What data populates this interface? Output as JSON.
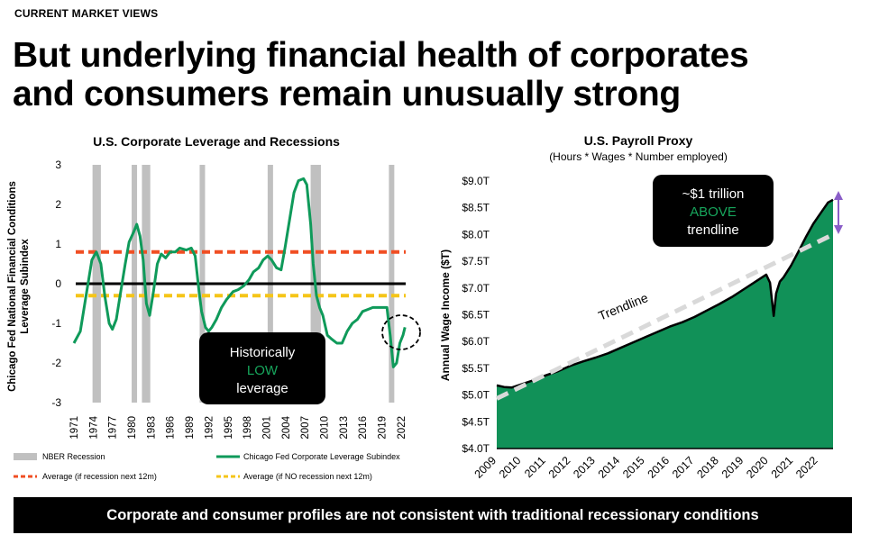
{
  "eyebrow": "CURRENT MARKET VIEWS",
  "headline": {
    "line1": "But underlying financial health of corporates",
    "line2": "and consumers remain unusually strong"
  },
  "footer": "Corporate and consumer profiles are not consistent with traditional recessionary conditions",
  "colors": {
    "green": "#0f9a5a",
    "area_green": "#119158",
    "red_dash": "#f04e23",
    "yellow_dash": "#f5c518",
    "recession_gray": "#c0c0c0",
    "trend_dash": "#d9d9d9",
    "arrow_purple": "#8a5ec8",
    "callout_bg": "#000000",
    "low_green": "#17a55c"
  },
  "chart_data": [
    {
      "type": "line",
      "title": "U.S. Corporate Leverage and Recessions",
      "ylabel_line1": "Chicago Fed National Financial Conditions",
      "ylabel_line2": "Leverage Subindex",
      "ylim": [
        -3,
        3
      ],
      "xlim": [
        1971,
        2023
      ],
      "yticks": [
        "3",
        "2",
        "1",
        "0",
        "-1",
        "-2",
        "-3"
      ],
      "xticks": [
        "1971",
        "1974",
        "1977",
        "1980",
        "1983",
        "1986",
        "1989",
        "1992",
        "1995",
        "1998",
        "2001",
        "2004",
        "2007",
        "2010",
        "2013",
        "2016",
        "2019",
        "2022"
      ],
      "recessions": [
        [
          1973.9,
          1975.2
        ],
        [
          1980.0,
          1980.6
        ],
        [
          1981.6,
          1982.9
        ],
        [
          1990.6,
          1991.2
        ],
        [
          2001.2,
          2001.9
        ],
        [
          2007.9,
          2009.5
        ],
        [
          2020.1,
          2020.4
        ]
      ],
      "reference_lines": [
        {
          "name": "Average (if recession next 12m)",
          "value": 0.8
        },
        {
          "name": "Average (if NO recession next 12m)",
          "value": -0.3
        },
        {
          "name": "zero",
          "value": 0
        }
      ],
      "series": [
        {
          "name": "Chicago Fed Corporate Leverage Subindex",
          "x": [
            1971.0,
            1972.0,
            1973.0,
            1973.8,
            1974.5,
            1975.2,
            1975.8,
            1976.5,
            1977.0,
            1977.6,
            1978.2,
            1979.0,
            1979.6,
            1980.3,
            1980.8,
            1981.3,
            1981.8,
            1982.3,
            1982.8,
            1983.4,
            1984.0,
            1984.6,
            1985.3,
            1986.0,
            1986.8,
            1987.5,
            1988.5,
            1989.3,
            1989.9,
            1990.5,
            1990.9,
            1991.5,
            1992.0,
            1992.5,
            1993.2,
            1994.0,
            1994.8,
            1995.8,
            1996.6,
            1997.5,
            1998.3,
            1999.0,
            1999.8,
            2000.5,
            2001.2,
            2001.8,
            2002.6,
            2003.3,
            2003.9,
            2004.6,
            2005.3,
            2006.0,
            2006.8,
            2007.3,
            2007.9,
            2008.3,
            2008.8,
            2009.3,
            2009.8,
            2010.5,
            2011.2,
            2012.0,
            2012.8,
            2013.6,
            2014.4,
            2015.2,
            2016.0,
            2016.8,
            2017.6,
            2018.4,
            2019.2,
            2019.8,
            2020.0,
            2020.3,
            2020.8,
            2021.3,
            2021.8,
            2022.3,
            2022.6
          ],
          "values": [
            -1.5,
            -1.2,
            -0.2,
            0.6,
            0.8,
            0.5,
            -0.3,
            -1.0,
            -1.15,
            -0.9,
            -0.3,
            0.5,
            1.05,
            1.3,
            1.5,
            1.2,
            0.6,
            -0.5,
            -0.8,
            -0.2,
            0.5,
            0.75,
            0.65,
            0.8,
            0.8,
            0.9,
            0.85,
            0.9,
            0.7,
            -0.2,
            -0.7,
            -1.1,
            -1.2,
            -1.1,
            -0.9,
            -0.6,
            -0.4,
            -0.2,
            -0.15,
            -0.05,
            0.1,
            0.3,
            0.4,
            0.6,
            0.7,
            0.6,
            0.4,
            0.35,
            0.9,
            1.6,
            2.3,
            2.6,
            2.65,
            2.5,
            1.5,
            0.5,
            -0.3,
            -0.6,
            -0.8,
            -1.3,
            -1.4,
            -1.5,
            -1.5,
            -1.2,
            -1.0,
            -0.9,
            -0.7,
            -0.65,
            -0.6,
            -0.6,
            -0.6,
            -0.6,
            -0.9,
            -1.3,
            -2.1,
            -2.0,
            -1.5,
            -1.3,
            -1.1
          ]
        }
      ],
      "annotation": {
        "line1": "Historically",
        "line2": "LOW",
        "line3": "leverage"
      },
      "legend": [
        {
          "label": "NBER Recession"
        },
        {
          "label": "Chicago Fed Corporate Leverage Subindex"
        },
        {
          "label": "Average (if recession next 12m)"
        },
        {
          "label": "Average (if NO recession next 12m)"
        }
      ]
    },
    {
      "type": "area",
      "title": "U.S. Payroll Proxy",
      "subtitle": "(Hours * Wages * Number employed)",
      "ylabel": "Annual Wage Income ($T)",
      "ylim": [
        4.0,
        9.0
      ],
      "xlim": [
        2009.0,
        2022.6
      ],
      "yticks": [
        "$9.0T",
        "$8.5T",
        "$8.0T",
        "$7.5T",
        "$7.0T",
        "$6.5T",
        "$6.0T",
        "$5.5T",
        "$5.0T",
        "$4.5T",
        "$4.0T"
      ],
      "xticks": [
        "2009",
        "2010",
        "2011",
        "2012",
        "2013",
        "2014",
        "2015",
        "2016",
        "2017",
        "2018",
        "2019",
        "2020",
        "2021",
        "2022"
      ],
      "series": [
        {
          "name": "Payroll Proxy",
          "x": [
            2009.0,
            2009.3,
            2009.6,
            2010.0,
            2010.5,
            2011.0,
            2011.5,
            2012.0,
            2012.5,
            2013.0,
            2013.5,
            2014.0,
            2014.5,
            2015.0,
            2015.5,
            2016.0,
            2016.5,
            2017.0,
            2017.5,
            2018.0,
            2018.5,
            2019.0,
            2019.5,
            2019.9,
            2020.05,
            2020.2,
            2020.3,
            2020.45,
            2020.6,
            2020.9,
            2021.2,
            2021.5,
            2021.8,
            2022.1,
            2022.4,
            2022.6
          ],
          "values": [
            5.18,
            5.15,
            5.14,
            5.2,
            5.28,
            5.37,
            5.45,
            5.55,
            5.63,
            5.7,
            5.78,
            5.88,
            5.98,
            6.08,
            6.18,
            6.28,
            6.36,
            6.46,
            6.58,
            6.7,
            6.83,
            6.98,
            7.13,
            7.25,
            7.1,
            6.48,
            6.9,
            7.12,
            7.2,
            7.42,
            7.68,
            7.95,
            8.2,
            8.4,
            8.6,
            8.65
          ]
        },
        {
          "name": "Trendline",
          "x": [
            2009.0,
            2022.6
          ],
          "values": [
            4.9,
            8.0
          ]
        }
      ],
      "trend_label": "Trendline",
      "annotation": {
        "line1": "~$1 trillion",
        "line2": "ABOVE",
        "line3": "trendline"
      }
    }
  ]
}
